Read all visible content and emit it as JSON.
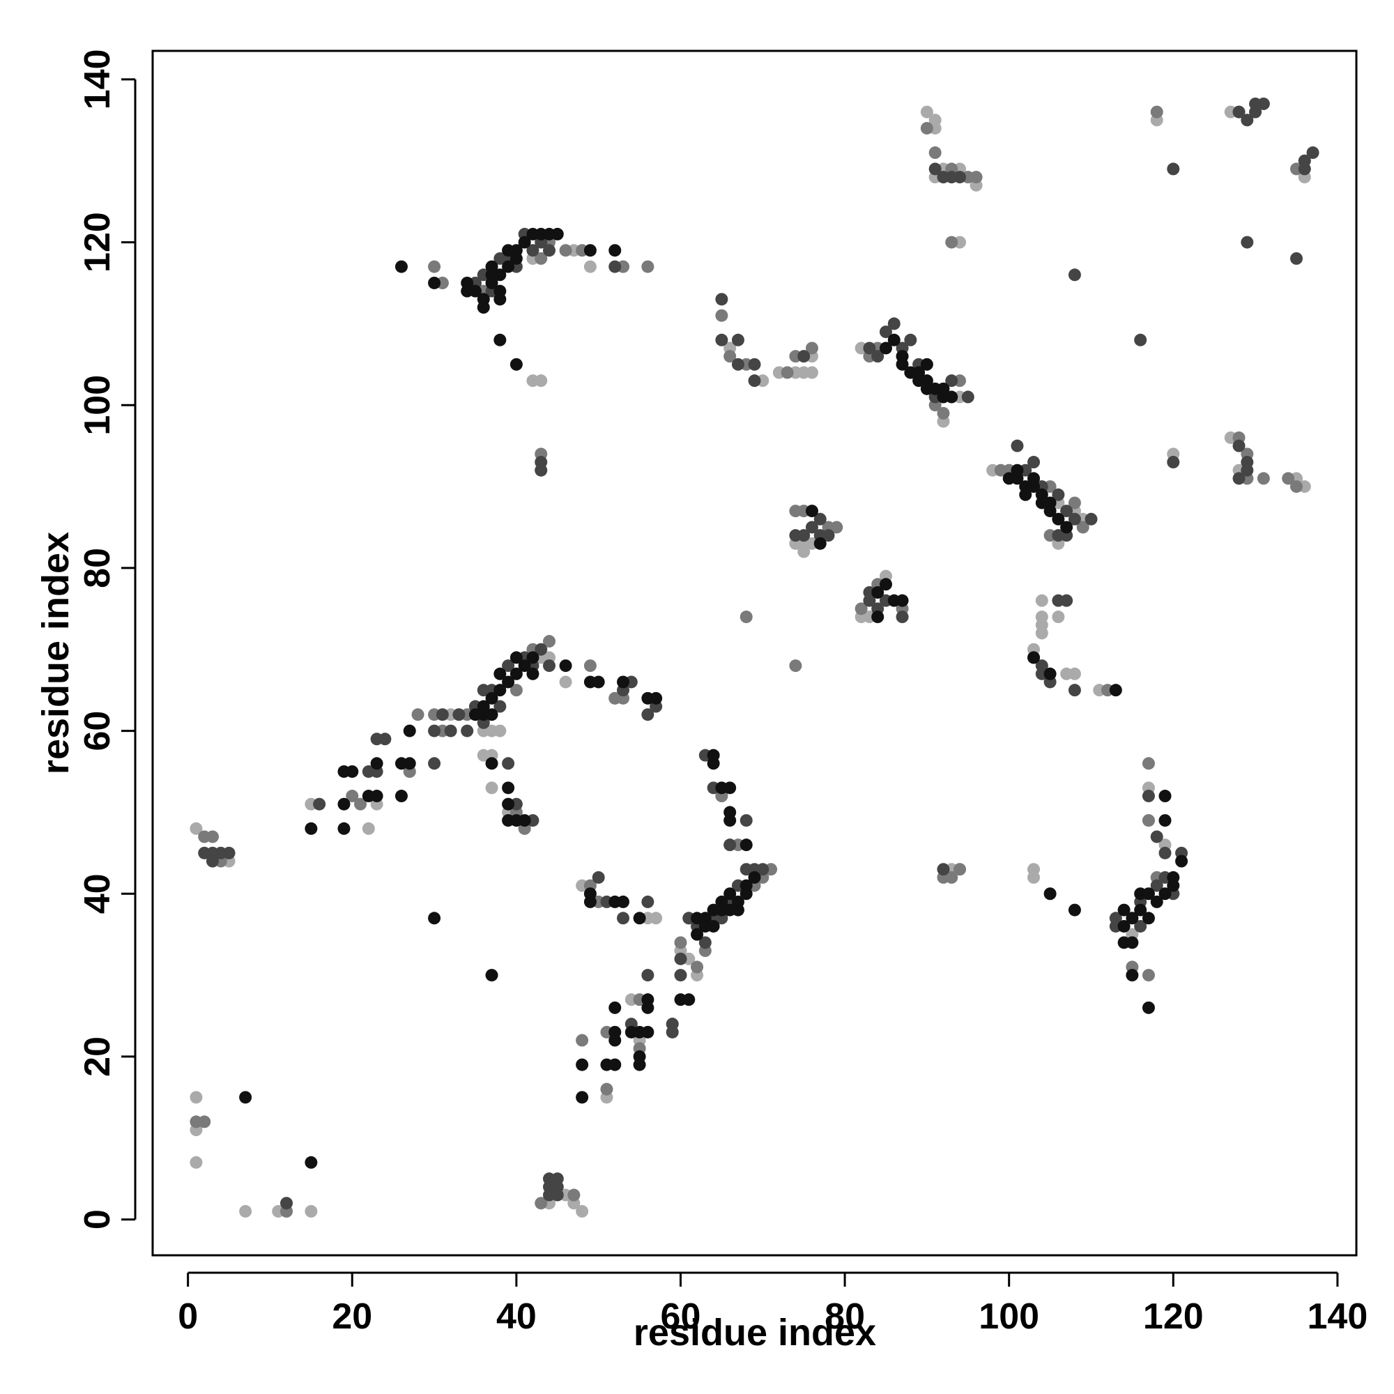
{
  "chart_data": {
    "type": "scatter",
    "x_label": "residue index",
    "y_label": "residue index",
    "xlim": [
      -4.3,
      142.3
    ],
    "ylim": [
      -4.4,
      143.5
    ],
    "xticks": [
      0,
      20,
      40,
      60,
      80,
      100,
      120,
      140
    ],
    "yticks": [
      0,
      20,
      40,
      60,
      80,
      100,
      120,
      140
    ],
    "grid": false,
    "series": [
      {
        "color": "#aaaaaa",
        "x": [
          31,
          35,
          42,
          42,
          43,
          43,
          47,
          49,
          53,
          66,
          70,
          72,
          74,
          75,
          76,
          76,
          82,
          92,
          94,
          90,
          91,
          91,
          91,
          92,
          92,
          93,
          94,
          96,
          94,
          98,
          106,
          106,
          108,
          109,
          74,
          75,
          75,
          76,
          82,
          83,
          85,
          104,
          104,
          104,
          104,
          103,
          106,
          107,
          108,
          111,
          32,
          33,
          36,
          37,
          37,
          38,
          43,
          44,
          46,
          52,
          15,
          22,
          23,
          27,
          36,
          37,
          39,
          41,
          48,
          56,
          57,
          60,
          61,
          62,
          61,
          51,
          52,
          55,
          54,
          65,
          66,
          1,
          1,
          1,
          1,
          3,
          5,
          7,
          11,
          15,
          12,
          44,
          46,
          48,
          47,
          93,
          94,
          103,
          103,
          115,
          115,
          117,
          117,
          119,
          118,
          118,
          127,
          128,
          120,
          127,
          128,
          129,
          135,
          136,
          136,
          136
        ],
        "values": [
          115,
          115,
          118,
          103,
          103,
          92,
          119,
          117,
          117,
          107,
          103,
          104,
          104,
          104,
          104,
          106,
          107,
          98,
          101,
          136,
          135,
          134,
          128,
          129,
          128,
          128,
          129,
          127,
          120,
          92,
          88,
          83,
          87,
          86,
          83,
          83,
          82,
          83,
          74,
          74,
          79,
          76,
          74,
          73,
          72,
          70,
          74,
          67,
          67,
          65,
          62,
          62,
          60,
          60,
          57,
          60,
          69,
          69,
          66,
          64,
          51,
          48,
          51,
          55,
          57,
          53,
          50,
          48,
          41,
          37,
          37,
          33,
          32,
          30,
          37,
          15,
          23,
          22,
          27,
          52,
          46,
          48,
          15,
          11,
          7,
          44,
          44,
          1,
          1,
          1,
          1,
          2,
          3,
          1,
          2,
          43,
          43,
          43,
          42,
          35,
          31,
          53,
          49,
          46,
          42,
          135,
          136,
          136,
          94,
          96,
          92,
          91,
          91,
          90,
          128,
          130
        ]
      },
      {
        "color": "#7a7a7a",
        "x": [
          30,
          31,
          36,
          43,
          44,
          48,
          53,
          56,
          46,
          65,
          66,
          68,
          73,
          74,
          76,
          83,
          84,
          91,
          92,
          94,
          43,
          99,
          100,
          105,
          108,
          109,
          105,
          75,
          74,
          79,
          78,
          82,
          84,
          87,
          68,
          74,
          28,
          30,
          31,
          34,
          40,
          42,
          44,
          49,
          52,
          53,
          20,
          21,
          27,
          40,
          41,
          62,
          63,
          65,
          67,
          69,
          70,
          71,
          48,
          49,
          50,
          51,
          51,
          55,
          55,
          59,
          60,
          1,
          2,
          2,
          3,
          4,
          12,
          47,
          43,
          93,
          94,
          92,
          90,
          91,
          93,
          95,
          96,
          93,
          117,
          118,
          117,
          115,
          117,
          112,
          128,
          129,
          129,
          131,
          135,
          134,
          118,
          135
        ],
        "values": [
          117,
          115,
          114,
          118,
          120,
          119,
          117,
          117,
          119,
          111,
          106,
          105,
          104,
          106,
          107,
          106,
          107,
          100,
          99,
          103,
          94,
          92,
          92,
          90,
          88,
          85,
          84,
          87,
          87,
          85,
          85,
          75,
          78,
          75,
          74,
          68,
          62,
          62,
          60,
          62,
          65,
          70,
          71,
          68,
          64,
          64,
          52,
          51,
          55,
          50,
          48,
          31,
          33,
          52,
          46,
          41,
          42,
          43,
          22,
          41,
          39,
          23,
          16,
          27,
          21,
          24,
          34,
          12,
          12,
          47,
          47,
          44,
          1,
          3,
          2,
          42,
          43,
          42,
          134,
          131,
          129,
          128,
          128,
          120,
          49,
          42,
          56,
          31,
          30,
          65,
          96,
          94,
          91,
          91,
          90,
          91,
          136,
          129
        ]
      },
      {
        "color": "#454545",
        "x": [
          35,
          36,
          37,
          38,
          39,
          40,
          42,
          41,
          43,
          44,
          52,
          65,
          65,
          67,
          67,
          69,
          69,
          75,
          83,
          84,
          85,
          86,
          87,
          88,
          89,
          91,
          93,
          95,
          43,
          43,
          101,
          102,
          103,
          104,
          106,
          107,
          108,
          110,
          106,
          107,
          74,
          75,
          76,
          77,
          78,
          77,
          83,
          83,
          84,
          85,
          87,
          31,
          32,
          33,
          34,
          35,
          36,
          37,
          36,
          38,
          39,
          41,
          42,
          43,
          44,
          53,
          56,
          57,
          54,
          24,
          23,
          22,
          16,
          23,
          30,
          30,
          39,
          42,
          40,
          63,
          66,
          68,
          64,
          62,
          61,
          63,
          64,
          65,
          66,
          67,
          68,
          69,
          70,
          51,
          53,
          56,
          50,
          60,
          60,
          59,
          59,
          56,
          54,
          44,
          45,
          44,
          45,
          44,
          45,
          3,
          4,
          2,
          5,
          3,
          12,
          92,
          93,
          94,
          92,
          91,
          103,
          104,
          104,
          106,
          107,
          105,
          108,
          113,
          113,
          116,
          116,
          118,
          119,
          119,
          120,
          121,
          117,
          118,
          116,
          120,
          108,
          129,
          128,
          129,
          129,
          128,
          128,
          129,
          130,
          130,
          131,
          136,
          137,
          136,
          135,
          120
        ],
        "values": [
          115,
          116,
          114,
          118,
          118,
          117,
          119,
          121,
          120,
          119,
          117,
          113,
          108,
          108,
          105,
          105,
          103,
          106,
          107,
          106,
          109,
          110,
          107,
          108,
          105,
          101,
          103,
          101,
          93,
          92,
          95,
          92,
          93,
          90,
          89,
          87,
          86,
          86,
          84,
          84,
          84,
          84,
          85,
          86,
          84,
          84,
          77,
          76,
          75,
          76,
          74,
          62,
          60,
          62,
          60,
          63,
          65,
          65,
          61,
          63,
          68,
          69,
          68,
          70,
          68,
          65,
          62,
          63,
          66,
          59,
          59,
          55,
          51,
          55,
          56,
          60,
          56,
          49,
          51,
          57,
          46,
          49,
          53,
          36,
          37,
          34,
          37,
          37,
          39,
          41,
          43,
          43,
          43,
          39,
          37,
          39,
          42,
          30,
          32,
          24,
          23,
          30,
          24,
          4,
          4,
          3,
          3,
          5,
          5,
          45,
          45,
          45,
          45,
          44,
          2,
          43,
          128,
          128,
          128,
          129,
          69,
          68,
          67,
          76,
          76,
          66,
          65,
          36,
          37,
          36,
          39,
          41,
          45,
          42,
          40,
          45,
          52,
          47,
          108,
          129,
          116,
          120,
          95,
          93,
          92,
          91,
          136,
          135,
          136,
          137,
          137,
          130,
          131,
          129,
          118,
          93
        ]
      },
      {
        "color": "#111111",
        "x": [
          26,
          30,
          34,
          34,
          35,
          36,
          36,
          37,
          37,
          37,
          38,
          38,
          38,
          39,
          39,
          40,
          40,
          41,
          42,
          43,
          44,
          45,
          49,
          52,
          38,
          40,
          46,
          49,
          50,
          53,
          56,
          57,
          37,
          39,
          39,
          39,
          40,
          41,
          35,
          36,
          36,
          37,
          37,
          38,
          38,
          39,
          40,
          40,
          41,
          42,
          42,
          19,
          20,
          19,
          19,
          22,
          23,
          23,
          26,
          27,
          27,
          26,
          15,
          64,
          64,
          65,
          66,
          66,
          66,
          68,
          49,
          49,
          52,
          53,
          55,
          62,
          62,
          63,
          63,
          64,
          64,
          65,
          65,
          66,
          66,
          67,
          67,
          68,
          68,
          69,
          30,
          37,
          48,
          48,
          51,
          52,
          52,
          52,
          52,
          54,
          55,
          55,
          55,
          56,
          56,
          56,
          60,
          61,
          7,
          15,
          76,
          77,
          84,
          85,
          86,
          87,
          84,
          85,
          86,
          87,
          87,
          88,
          89,
          89,
          90,
          90,
          91,
          92,
          92,
          93,
          90,
          100,
          101,
          101,
          102,
          102,
          103,
          103,
          104,
          104,
          105,
          105,
          106,
          107,
          103,
          105,
          105,
          108,
          113,
          114,
          114,
          114,
          115,
          115,
          115,
          116,
          116,
          117,
          117,
          117,
          118,
          119,
          119,
          119,
          120,
          120,
          121
        ],
        "values": [
          117,
          115,
          115,
          114,
          114,
          113,
          112,
          117,
          116,
          115,
          116,
          114,
          113,
          119,
          117,
          118,
          119,
          120,
          121,
          121,
          121,
          121,
          119,
          119,
          108,
          105,
          68,
          66,
          66,
          66,
          64,
          64,
          56,
          53,
          51,
          49,
          49,
          49,
          62,
          62,
          63,
          62,
          64,
          65,
          67,
          66,
          67,
          69,
          68,
          67,
          69,
          55,
          55,
          51,
          48,
          52,
          52,
          56,
          56,
          60,
          56,
          52,
          48,
          57,
          56,
          53,
          53,
          50,
          49,
          46,
          40,
          39,
          39,
          39,
          37,
          37,
          35,
          36,
          37,
          38,
          36,
          38,
          39,
          40,
          38,
          39,
          38,
          41,
          40,
          42,
          37,
          30,
          19,
          15,
          19,
          19,
          22,
          23,
          26,
          23,
          23,
          20,
          19,
          23,
          26,
          27,
          27,
          27,
          15,
          7,
          87,
          83,
          77,
          78,
          76,
          76,
          74,
          107,
          108,
          106,
          105,
          104,
          104,
          103,
          103,
          102,
          102,
          102,
          101,
          101,
          105,
          91,
          91,
          92,
          90,
          89,
          90,
          91,
          89,
          88,
          87,
          88,
          86,
          85,
          69,
          67,
          40,
          38,
          65,
          38,
          36,
          34,
          37,
          34,
          30,
          40,
          38,
          40,
          37,
          26,
          39,
          40,
          49,
          52,
          42,
          41,
          44
        ]
      }
    ]
  }
}
